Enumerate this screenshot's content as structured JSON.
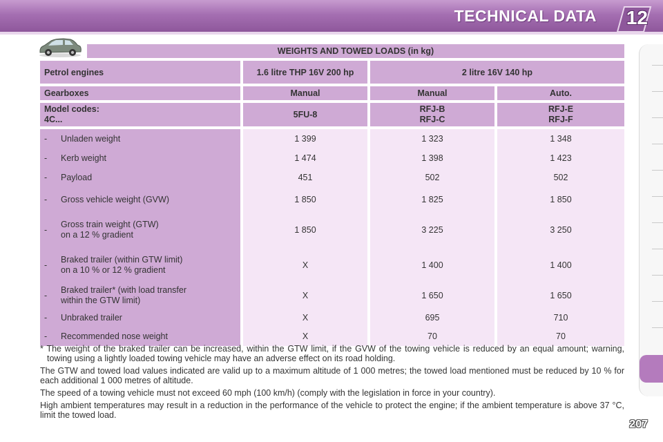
{
  "header": {
    "title": "TECHNICAL DATA",
    "chapter": "12"
  },
  "section_title": "WEIGHTS AND TOWED LOADS (in kg)",
  "table": {
    "engines_label": "Petrol engines",
    "engine_thp": "1.6 litre THP 16V 200 hp",
    "engine_16v": "2 litre 16V 140 hp",
    "gearboxes_label": "Gearboxes",
    "gearboxes": [
      "Manual",
      "Manual",
      "Auto."
    ],
    "model_codes_label_1": "Model codes:",
    "model_codes_label_2": "4C...",
    "model_codes": [
      {
        "line1": "5FU-8",
        "line2": ""
      },
      {
        "line1": "RFJ-B",
        "line2": "RFJ-C"
      },
      {
        "line1": "RFJ-E",
        "line2": "RFJ-F"
      }
    ],
    "rows": [
      {
        "dash": "-",
        "line1": "Unladen weight",
        "line2": "",
        "values": [
          "1 399",
          "1 323",
          "1 348"
        ]
      },
      {
        "dash": "-",
        "line1": "Kerb weight",
        "line2": "",
        "values": [
          "1 474",
          "1 398",
          "1 423"
        ]
      },
      {
        "dash": "-",
        "line1": "Payload",
        "line2": "",
        "values": [
          "451",
          "502",
          "502"
        ]
      },
      {
        "dash": "-",
        "line1": "Gross vehicle weight (GVW)",
        "line2": "",
        "values": [
          "1 850",
          "1 825",
          "1 850"
        ]
      },
      {
        "dash": "-",
        "line1": "Gross train weight (GTW)",
        "line2": "on a 12 % gradient",
        "values": [
          "1 850",
          "3 225",
          "3 250"
        ]
      },
      {
        "dash": "-",
        "line1": "Braked trailer (within GTW limit)",
        "line2": "on a 10 % or 12 % gradient",
        "values": [
          "X",
          "1 400",
          "1 400"
        ]
      },
      {
        "dash": "-",
        "line1": "Braked trailer* (with load transfer",
        "line2": "within the GTW limit)",
        "values": [
          "X",
          "1 650",
          "1 650"
        ]
      },
      {
        "dash": "-",
        "line1": "Unbraked trailer",
        "line2": "",
        "values": [
          "X",
          "695",
          "710"
        ]
      },
      {
        "dash": "-",
        "line1": "Recommended nose weight",
        "line2": "",
        "values": [
          "X",
          "70",
          "70"
        ]
      }
    ]
  },
  "footnotes": {
    "star": "* The weight of the braked trailer can be increased, within the GTW limit, if the GVW of the towing vehicle is reduced by an equal amount; warning, towing using a lightly loaded towing vehicle may have an adverse effect on its road holding.",
    "altitude": "The GTW and towed load values indicated are valid up to a maximum altitude of 1 000 metres; the towed load mentioned must be reduced by 10 % for each additional 1 000 metres of altitude.",
    "speed": "The speed of a towing vehicle must not exceed 60 mph (100 km/h) (comply with the legislation in force in your country).",
    "temperature": "High ambient temperatures may result in a reduction in the performance of the vehicle to protect the engine; if the ambient temperature is above 37 °C, limit the towed load."
  },
  "page_number": "207",
  "colors": {
    "header_purple": "#a56fb2",
    "cell_purple": "#cfaad5",
    "cell_light": "#f5e6f6"
  },
  "icons": {
    "car": "car-icon"
  }
}
